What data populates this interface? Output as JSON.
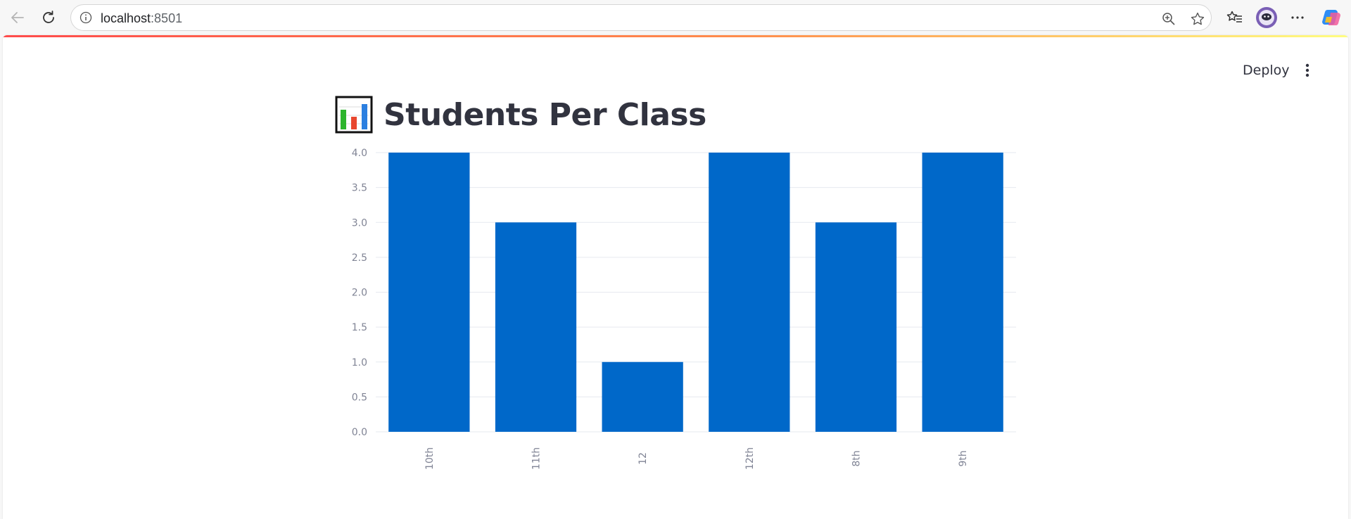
{
  "browser": {
    "url_host": "localhost",
    "url_port": ":8501",
    "icons": [
      "back-icon",
      "reload-icon",
      "info-icon",
      "zoom-icon",
      "favorite-star-icon",
      "favorites-list-icon",
      "profile-avatar-icon",
      "more-options-icon",
      "copilot-icon"
    ]
  },
  "app": {
    "deploy_label": "Deploy",
    "title_emoji": "bar-chart-emoji",
    "title": "Students Per Class",
    "accent_color": "#0068c9",
    "decoration_colors": [
      "#ff4b4b",
      "#fffd80"
    ]
  },
  "chart_data": {
    "type": "bar",
    "title": "",
    "xlabel": "",
    "ylabel": "",
    "categories": [
      "10th",
      "11th",
      "12",
      "12th",
      "8th",
      "9th"
    ],
    "values": [
      4,
      3,
      1,
      4,
      3,
      4
    ],
    "ylim": [
      0,
      4
    ],
    "yticks": [
      "0.0",
      "0.5",
      "1.0",
      "1.5",
      "2.0",
      "2.5",
      "3.0",
      "3.5",
      "4.0"
    ],
    "grid": true,
    "legend": "none",
    "bar_color": "#0068c9"
  }
}
